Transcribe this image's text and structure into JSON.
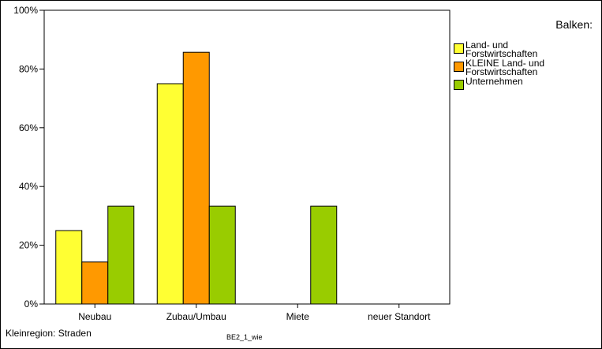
{
  "chart_data": {
    "type": "bar",
    "categories": [
      "Neubau",
      "Zubau/Umbau",
      "Miete",
      "neuer Standort"
    ],
    "series": [
      {
        "name": "Land- und\nForstwirtschaften",
        "values": [
          25,
          75,
          0,
          0
        ],
        "color": "#ffff33"
      },
      {
        "name": "KLEINE Land- und\nForstwirtschaften",
        "values": [
          14.3,
          85.7,
          0,
          0
        ],
        "color": "#ff9900"
      },
      {
        "name": "Unternehmen",
        "values": [
          33.3,
          33.3,
          33.3,
          0
        ],
        "color": "#99cc00"
      }
    ],
    "ylim": [
      0,
      100
    ],
    "yticks": [
      "0%",
      "20%",
      "40%",
      "60%",
      "80%",
      "100%"
    ],
    "legend_title": "Balken:",
    "legend_position": "right",
    "xlabel": "BE2_1_wie",
    "footnote": "Kleinregion: Straden",
    "grid": false
  }
}
